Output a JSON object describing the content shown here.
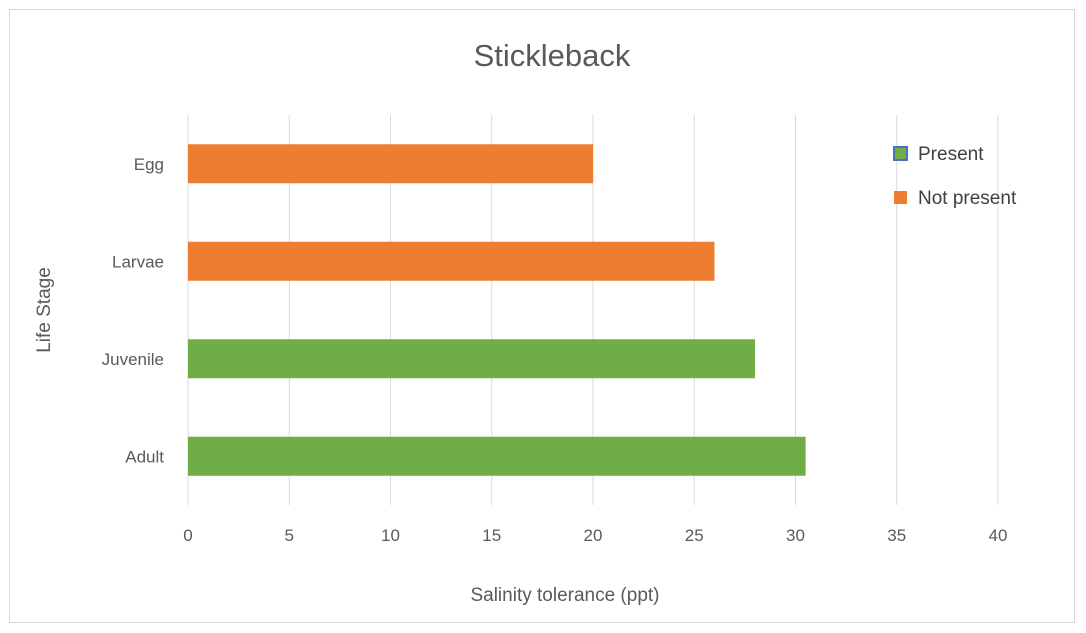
{
  "chart_data": {
    "type": "bar",
    "orientation": "horizontal",
    "title": "Stickleback",
    "xlabel": "Salinity tolerance (ppt)",
    "ylabel": "Life Stage",
    "xlim": [
      0,
      40
    ],
    "x_ticks": [
      "0",
      "5",
      "10",
      "15",
      "20",
      "25",
      "30",
      "35",
      "40"
    ],
    "categories": [
      "Egg",
      "Larvae",
      "Juvenile",
      "Adult"
    ],
    "values": [
      20,
      26,
      28,
      30.5
    ],
    "bar_status": [
      "Not present",
      "Not present",
      "Present",
      "Present"
    ],
    "grid": "vertical",
    "legend_position": "right",
    "legend": [
      {
        "label": "Present",
        "color": "#70ad47",
        "border": "#4472c4"
      },
      {
        "label": "Not present",
        "color": "#ed7d31"
      }
    ],
    "colors": {
      "Present": "#70ad47",
      "Not present": "#ed7d31"
    }
  }
}
